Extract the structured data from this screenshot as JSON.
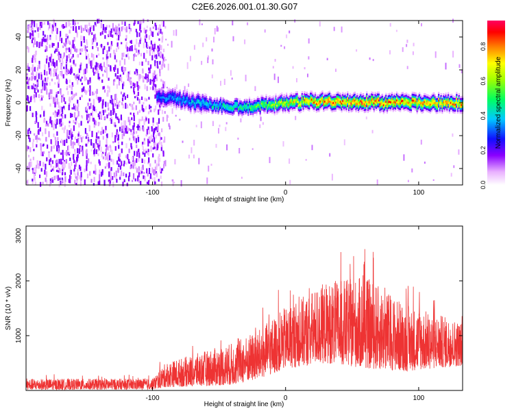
{
  "title": "C2E6.2026.001.01.30.G07",
  "chart_data": [
    {
      "type": "heatmap",
      "name": "spectrogram",
      "xlabel": "Height of straight line (km)",
      "ylabel": "Frequency (Hz)",
      "xlim": [
        -195,
        133
      ],
      "ylim": [
        -50,
        50
      ],
      "xticks": [
        -100,
        0,
        100
      ],
      "xtick_labels": [
        "-100",
        "0",
        "100"
      ],
      "yticks": [
        -40,
        -20,
        0,
        20,
        40
      ],
      "ytick_labels": [
        "-40",
        "-20",
        "0",
        "20",
        "40"
      ],
      "description_points": [
        {
          "x": -195,
          "note_region": "noise",
          "freq_spread": [
            -50,
            50
          ],
          "amplitude": 0.1
        },
        {
          "x": -95,
          "centre_freq": 4,
          "amplitude": 0.35
        },
        {
          "x": -60,
          "centre_freq": -1,
          "amplitude": 0.45
        },
        {
          "x": -30,
          "centre_freq": -3,
          "amplitude": 0.55
        },
        {
          "x": 0,
          "centre_freq": 0,
          "amplitude": 0.75
        },
        {
          "x": 30,
          "centre_freq": 1,
          "amplitude": 0.9
        },
        {
          "x": 70,
          "centre_freq": 0,
          "amplitude": 0.9
        },
        {
          "x": 133,
          "centre_freq": 0,
          "amplitude": 0.85
        }
      ]
    },
    {
      "type": "colorbar",
      "name": "amplitude-colorbar",
      "label": "Normalized spectral amplitude",
      "ylim": [
        0,
        0.95
      ],
      "ticks": [
        0,
        0.2,
        0.4,
        0.6,
        0.8
      ],
      "tick_labels": [
        "0.0",
        "0.2",
        "0.4",
        "0.6",
        "0.8"
      ]
    },
    {
      "type": "line",
      "name": "snr",
      "xlabel": "Height of straight line (km)",
      "ylabel": "SNR (10 * v/v)",
      "xlim": [
        -195,
        133
      ],
      "ylim": [
        0,
        3000
      ],
      "xticks": [
        -100,
        0,
        100
      ],
      "xtick_labels": [
        "-100",
        "0",
        "100"
      ],
      "yticks": [
        1000,
        2000,
        3000
      ],
      "ytick_labels": [
        "1000",
        "2000",
        "3000"
      ],
      "color": "#ee3333",
      "envelope": [
        {
          "x": -195,
          "low": 10,
          "high": 300
        },
        {
          "x": -100,
          "low": 20,
          "high": 300
        },
        {
          "x": -90,
          "low": 60,
          "high": 700
        },
        {
          "x": -60,
          "low": 80,
          "high": 1000
        },
        {
          "x": -40,
          "low": 100,
          "high": 1200
        },
        {
          "x": -20,
          "low": 200,
          "high": 1500
        },
        {
          "x": 0,
          "low": 400,
          "high": 2000
        },
        {
          "x": 30,
          "low": 500,
          "high": 2600
        },
        {
          "x": 60,
          "low": 400,
          "high": 2800
        },
        {
          "x": 90,
          "low": 350,
          "high": 2100
        },
        {
          "x": 133,
          "low": 450,
          "high": 1600
        }
      ]
    }
  ]
}
